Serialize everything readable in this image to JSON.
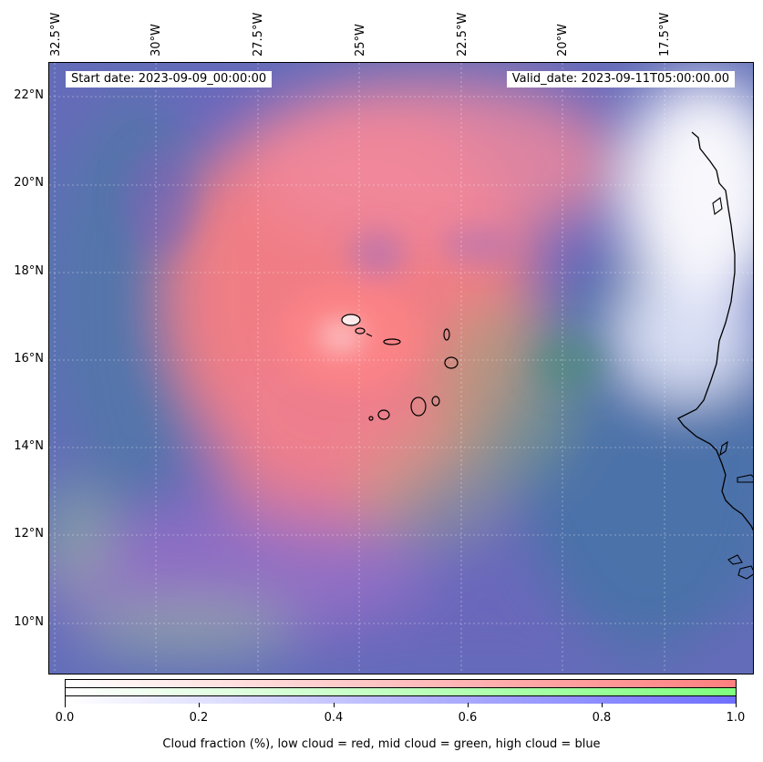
{
  "map": {
    "start_date": "Start date: 2023-09-09_00:00:00",
    "valid_date": "Valid_date: 2023-09-11T05:00:00.00",
    "lon_labels": [
      "32.5°W",
      "30°W",
      "27.5°W",
      "25°W",
      "22.5°W",
      "20°W",
      "17.5°W"
    ],
    "lat_labels": [
      "22°N",
      "20°N",
      "18°N",
      "16°N",
      "14°N",
      "12°N",
      "10°N"
    ],
    "colors": {
      "low_cloud": "#ff7f7f",
      "mid_cloud": "#7fff7f",
      "high_cloud": "#6f6fff",
      "coast": "#000000"
    }
  },
  "colorbar": {
    "ticks": [
      "0.0",
      "0.2",
      "0.4",
      "0.6",
      "0.8",
      "1.0"
    ],
    "label": "Cloud fraction (%), low cloud = red, mid cloud = green, high cloud = blue"
  }
}
